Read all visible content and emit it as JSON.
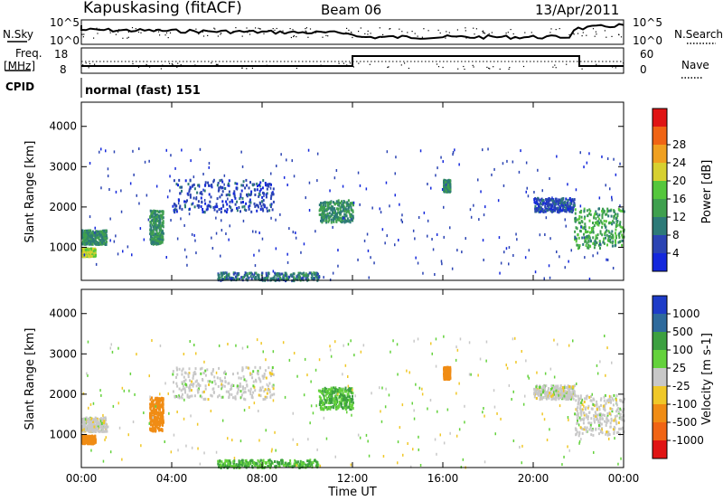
{
  "header": {
    "station": "Kapuskasing (fitACF)",
    "beam": "Beam 06",
    "date": "13/Apr/2011"
  },
  "panels": {
    "nsky": {
      "left_label": "N.Sky",
      "right_label": "N.Search",
      "tick_top": "10^5",
      "tick_bottom": "10^0"
    },
    "freq": {
      "left_label_1": "Freq.",
      "left_label_2": "[MHz]",
      "right_label": "Nave",
      "ticks_left": [
        "18",
        "8"
      ],
      "ticks_right": [
        "60",
        "0"
      ]
    },
    "cpid": {
      "label": "CPID",
      "program": "normal (fast) 151"
    }
  },
  "chart_data": [
    {
      "type": "heatmap",
      "title": "",
      "ylabel": "Slant Range [km]",
      "ylim": [
        180,
        4600
      ],
      "yticks": [
        "1000",
        "2000",
        "3000",
        "4000"
      ],
      "colorbar": {
        "label": "Power [dB]",
        "ticks": [
          "4",
          "8",
          "12",
          "16",
          "20",
          "24",
          "28"
        ],
        "colors": [
          "#1428dc",
          "#2b44b3",
          "#2d7a78",
          "#3fa04e",
          "#55c73c",
          "#d7d030",
          "#f0a020",
          "#f06414",
          "#e01414"
        ]
      },
      "regions": [
        {
          "t_start": 0.0,
          "t_end": 1.1,
          "range_start": 1100,
          "range_end": 1450,
          "value": 12
        },
        {
          "t_start": 0.0,
          "t_end": 0.6,
          "range_start": 800,
          "range_end": 1000,
          "value": 20
        },
        {
          "t_start": 3.0,
          "t_end": 3.6,
          "range_start": 1100,
          "range_end": 1950,
          "value": 12
        },
        {
          "t_start": 4.0,
          "t_end": 8.5,
          "range_start": 1900,
          "range_end": 2700,
          "value": 6
        },
        {
          "t_start": 10.5,
          "t_end": 12.0,
          "range_start": 1650,
          "range_end": 2200,
          "value": 12
        },
        {
          "t_start": 16.0,
          "t_end": 16.3,
          "range_start": 2400,
          "range_end": 2700,
          "value": 12
        },
        {
          "t_start": 20.0,
          "t_end": 21.8,
          "range_start": 1900,
          "range_end": 2250,
          "value": 6
        },
        {
          "t_start": 21.8,
          "t_end": 24.0,
          "range_start": 1000,
          "range_end": 2000,
          "value": 14
        },
        {
          "t_start": 6.0,
          "t_end": 10.5,
          "range_start": 200,
          "range_end": 400,
          "value": 10
        }
      ]
    },
    {
      "type": "heatmap",
      "title": "",
      "ylabel": "Slant Range [km]",
      "xlabel": "Time UT",
      "ylim": [
        180,
        4600
      ],
      "yticks": [
        "1000",
        "2000",
        "3000",
        "4000"
      ],
      "xticks": [
        "00:00",
        "04:00",
        "08:00",
        "12:00",
        "16:00",
        "20:00",
        "00:00"
      ],
      "xlim": [
        0,
        24
      ],
      "colorbar": {
        "label": "Velocity [m s-1]",
        "ticks": [
          "1000",
          "500",
          "100",
          "25",
          "-25",
          "-100",
          "-500",
          "-1000"
        ],
        "colors": [
          "#1e3cc8",
          "#2e6a9c",
          "#3ca040",
          "#64d23c",
          "#c8c8c8",
          "#f0c828",
          "#f08c14",
          "#f06414",
          "#e01414"
        ]
      },
      "regions": [
        {
          "t_start": 0.0,
          "t_end": 1.1,
          "range_start": 1100,
          "range_end": 1450,
          "value": 0
        },
        {
          "t_start": 0.0,
          "t_end": 0.6,
          "range_start": 800,
          "range_end": 1000,
          "value": -400
        },
        {
          "t_start": 3.0,
          "t_end": 3.6,
          "range_start": 1100,
          "range_end": 1950,
          "value": -400
        },
        {
          "t_start": 4.0,
          "t_end": 8.5,
          "range_start": 1900,
          "range_end": 2700,
          "value": 0
        },
        {
          "t_start": 10.5,
          "t_end": 12.0,
          "range_start": 1650,
          "range_end": 2200,
          "value": 100
        },
        {
          "t_start": 16.0,
          "t_end": 16.3,
          "range_start": 2400,
          "range_end": 2700,
          "value": -400
        },
        {
          "t_start": 20.0,
          "t_end": 21.8,
          "range_start": 1900,
          "range_end": 2250,
          "value": 0
        },
        {
          "t_start": 21.8,
          "t_end": 24.0,
          "range_start": 1000,
          "range_end": 2000,
          "value": 0
        },
        {
          "t_start": 6.0,
          "t_end": 10.5,
          "range_start": 200,
          "range_end": 400,
          "value": 100
        }
      ]
    }
  ]
}
